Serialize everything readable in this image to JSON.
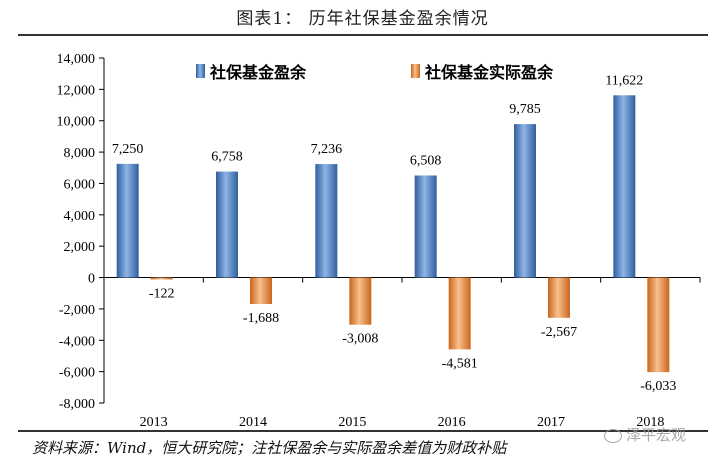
{
  "title": "图表1：  历年社保基金盈余情况",
  "source_note": "资料来源：Wind，恒大研究院；注社保盈余与实际盈余差值为财政补贴",
  "watermark": "泽平宏观",
  "colors": {
    "blue": "#4a7fc6",
    "orange": "#ef8c3e"
  },
  "chart_data": {
    "type": "bar",
    "categories": [
      "2013",
      "2014",
      "2015",
      "2016",
      "2017",
      "2018"
    ],
    "series": [
      {
        "name": "社保基金盈余",
        "values": [
          7250,
          6758,
          7236,
          6508,
          9785,
          11622
        ],
        "labels": [
          "7,250",
          "6,758",
          "7,236",
          "6,508",
          "9,785",
          "11,622"
        ]
      },
      {
        "name": "社保基金实际盈余",
        "values": [
          -122,
          -1688,
          -3008,
          -4581,
          -2567,
          -6033
        ],
        "labels": [
          "-122",
          "-1,688",
          "-3,008",
          "-4,581",
          "-2,567",
          "-6,033"
        ]
      }
    ],
    "ylim": [
      -8000,
      14000
    ],
    "yticks": [
      14000,
      12000,
      10000,
      8000,
      6000,
      4000,
      2000,
      0,
      -2000,
      -4000,
      -6000,
      -8000
    ],
    "ytick_labels": [
      "14,000",
      "12,000",
      "10,000",
      "8,000",
      "6,000",
      "4,000",
      "2,000",
      "0",
      "-2,000",
      "-4,000",
      "-6,000",
      "-8,000"
    ],
    "legend_position": "top",
    "grid": false
  }
}
